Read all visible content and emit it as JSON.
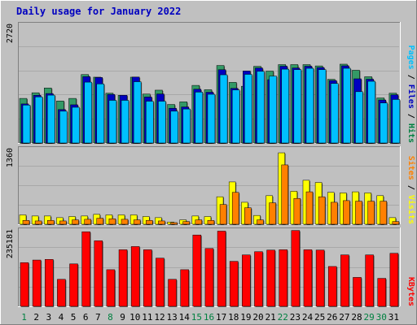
{
  "window": {
    "background": "#c0c0c0"
  },
  "chart_data": [
    {
      "type": "bar",
      "title": "Daily usage for January 2022",
      "categories": [
        "1",
        "2",
        "3",
        "4",
        "5",
        "6",
        "7",
        "8",
        "9",
        "10",
        "11",
        "12",
        "13",
        "14",
        "15",
        "16",
        "17",
        "18",
        "19",
        "20",
        "21",
        "22",
        "23",
        "24",
        "25",
        "26",
        "27",
        "28",
        "29",
        "30",
        "31"
      ],
      "weekend_days": [
        "1",
        "8",
        "15",
        "16",
        "22",
        "29",
        "30"
      ],
      "ylim": [
        0,
        2720
      ],
      "ymax_label": "2720",
      "ylabel_parts": [
        {
          "text": "Pages",
          "color": "#00c0ff"
        },
        {
          "text": "Files",
          "color": "#0000c0"
        },
        {
          "text": "Hits",
          "color": "#008040"
        }
      ],
      "series": [
        {
          "name": "Hits",
          "color": "#339966",
          "values": [
            1030,
            1160,
            1270,
            970,
            1030,
            1580,
            1520,
            1150,
            1100,
            1520,
            1130,
            1220,
            890,
            950,
            1330,
            1230,
            1790,
            1400,
            1310,
            1770,
            1660,
            1810,
            1810,
            1810,
            1780,
            1470,
            1820,
            1680,
            1530,
            1040,
            1150
          ]
        },
        {
          "name": "Files",
          "color": "#0000c0",
          "values": [
            940,
            1140,
            1180,
            810,
            920,
            1570,
            1550,
            1160,
            1140,
            1560,
            1100,
            1170,
            840,
            870,
            1280,
            1210,
            1730,
            1300,
            1700,
            1770,
            1500,
            1810,
            1770,
            1810,
            1780,
            1480,
            1820,
            1520,
            1510,
            1030,
            1150
          ]
        },
        {
          "name": "Pages",
          "color": "#00c0ff",
          "values": [
            950,
            1140,
            1180,
            810,
            900,
            1480,
            1440,
            1060,
            1060,
            1490,
            1040,
            1040,
            810,
            860,
            1250,
            1200,
            1650,
            1300,
            1660,
            1730,
            1620,
            1780,
            1770,
            1800,
            1770,
            1450,
            1800,
            1260,
            1500,
            1000,
            1080
          ]
        }
      ]
    },
    {
      "type": "bar",
      "ylim": [
        0,
        1360
      ],
      "ymax_label": "1360",
      "ylabel_parts": [
        {
          "text": "Sites",
          "color": "#ff8000"
        },
        {
          "text": "Visits",
          "color": "#ffff00"
        }
      ],
      "series": [
        {
          "name": "Visits",
          "color": "#ffff00",
          "values": [
            170,
            150,
            150,
            120,
            140,
            150,
            180,
            170,
            170,
            170,
            140,
            120,
            40,
            80,
            150,
            140,
            500,
            770,
            400,
            160,
            520,
            1300,
            600,
            800,
            760,
            580,
            570,
            590,
            570,
            520,
            120
          ]
        },
        {
          "name": "Sites",
          "color": "#ff8000",
          "values": [
            70,
            60,
            70,
            60,
            80,
            90,
            110,
            100,
            90,
            80,
            70,
            60,
            30,
            50,
            80,
            70,
            360,
            580,
            300,
            80,
            390,
            1080,
            470,
            590,
            500,
            400,
            430,
            420,
            420,
            420,
            50
          ]
        }
      ]
    },
    {
      "type": "bar",
      "ylim": [
        0,
        235181
      ],
      "ymax_label": "235181",
      "ylabel_parts": [
        {
          "text": "KBytes",
          "color": "#ff0000"
        }
      ],
      "series": [
        {
          "name": "KBytes",
          "color": "#ff0000",
          "values": [
            136000,
            144000,
            146000,
            84000,
            132000,
            232000,
            204000,
            114000,
            176000,
            186000,
            176000,
            150000,
            84000,
            114000,
            222000,
            180000,
            234000,
            140000,
            160000,
            170000,
            175000,
            176000,
            236000,
            176000,
            175000,
            124000,
            160000,
            90000,
            160000,
            87000,
            165000
          ]
        }
      ]
    }
  ]
}
